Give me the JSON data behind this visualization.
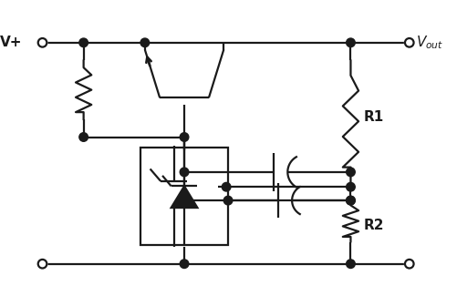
{
  "bg_color": "#ffffff",
  "line_color": "#1a1a1a",
  "line_width": 1.6,
  "vplus_label": "V+",
  "vout_label": "$V_{out}$",
  "r1_label": "R1",
  "r2_label": "R2",
  "fig_width": 5.02,
  "fig_height": 3.25,
  "dpi": 100
}
